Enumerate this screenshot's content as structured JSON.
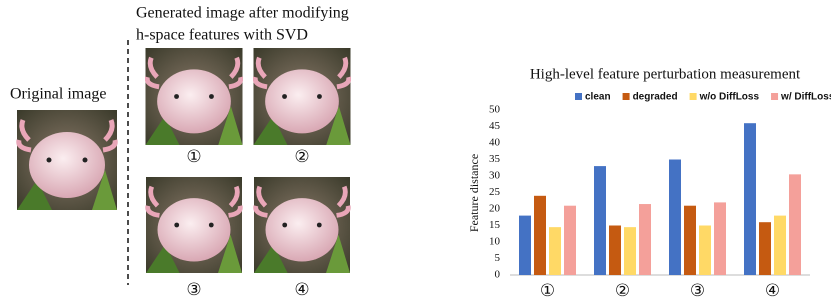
{
  "figure": {
    "original_label": "Original image",
    "generated_caption": [
      "Generated image after modifying",
      "h-space features with SVD"
    ],
    "variant_labels": [
      "①",
      "②",
      "③",
      "④"
    ]
  },
  "chart_data": {
    "type": "bar",
    "title": "High-level feature perturbation measurement",
    "y_label": "Feature distance",
    "categories": [
      "①",
      "②",
      "③",
      "④"
    ],
    "series": [
      {
        "name": "clean",
        "color": "#4472c4",
        "values": [
          18,
          33,
          35,
          46
        ]
      },
      {
        "name": "degraded",
        "color": "#c55a11",
        "values": [
          24,
          15,
          21,
          16
        ]
      },
      {
        "name": "w/o DiffLoss",
        "color": "#ffd966",
        "values": [
          14.5,
          14.5,
          15,
          18
        ]
      },
      {
        "name": "w/ DiffLoss",
        "color": "#f4a09a",
        "values": [
          21,
          21.5,
          22,
          30.5
        ]
      }
    ],
    "ylim": [
      0,
      50
    ],
    "yticks": [
      0,
      5,
      10,
      15,
      20,
      25,
      30,
      35,
      40,
      45,
      50
    ],
    "grid": false,
    "legend": "top"
  }
}
